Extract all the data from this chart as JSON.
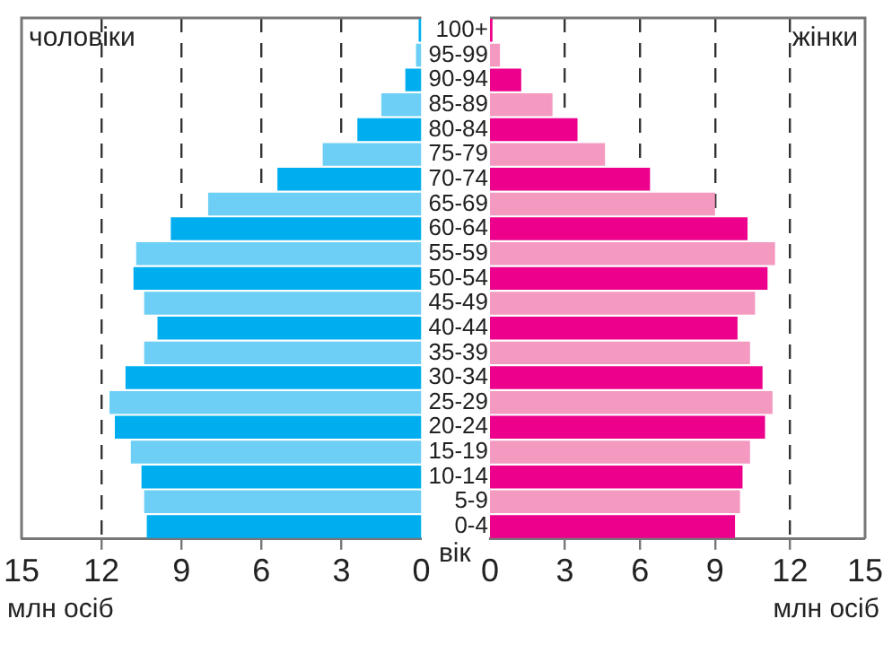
{
  "chart_data": [
    {
      "type": "bar",
      "orientation": "horizontal",
      "categories": [
        "100+",
        "95-99",
        "90-94",
        "85-89",
        "80-84",
        "75-79",
        "70-74",
        "65-69",
        "60-64",
        "55-59",
        "50-54",
        "45-49",
        "40-44",
        "35-39",
        "30-34",
        "25-29",
        "20-24",
        "15-19",
        "10-14",
        "5-9",
        "0-4"
      ],
      "values": [
        0.1,
        0.2,
        0.6,
        1.5,
        2.4,
        3.7,
        5.4,
        8.0,
        9.4,
        10.7,
        10.8,
        10.4,
        9.9,
        10.4,
        11.1,
        11.7,
        11.5,
        10.9,
        10.5,
        10.4,
        10.3
      ],
      "colors": [
        "#00aeef",
        "#6dcff6",
        "#00aeef",
        "#6dcff6",
        "#00aeef",
        "#6dcff6",
        "#00aeef",
        "#6dcff6",
        "#00aeef",
        "#6dcff6",
        "#00aeef",
        "#6dcff6",
        "#00aeef",
        "#6dcff6",
        "#00aeef",
        "#6dcff6",
        "#00aeef",
        "#6dcff6",
        "#00aeef",
        "#6dcff6",
        "#00aeef"
      ],
      "xlim": [
        15,
        0
      ],
      "xticks": [
        15,
        12,
        9,
        6,
        3,
        0
      ],
      "xlabel": "млн осіб",
      "grid": "x",
      "annotations": [
        "чоловіки",
        "вік"
      ]
    },
    {
      "type": "bar",
      "orientation": "horizontal",
      "categories": [
        null,
        null,
        null,
        null,
        null,
        null,
        null,
        null,
        null,
        null,
        null,
        null,
        null,
        null,
        null,
        null,
        null,
        null,
        null,
        null,
        null
      ],
      "values": [
        0.1,
        0.4,
        1.25,
        2.5,
        3.5,
        4.6,
        6.4,
        9.0,
        10.3,
        11.4,
        11.1,
        10.6,
        9.9,
        10.4,
        10.9,
        11.3,
        11.0,
        10.4,
        10.1,
        10.0,
        9.8
      ],
      "colors": [
        "#ec008c",
        "#f49ac1",
        "#ec008c",
        "#f49ac1",
        "#ec008c",
        "#f49ac1",
        "#ec008c",
        "#f49ac1",
        "#ec008c",
        "#f49ac1",
        "#ec008c",
        "#f49ac1",
        "#ec008c",
        "#f49ac1",
        "#ec008c",
        "#f49ac1",
        "#ec008c",
        "#f49ac1",
        "#ec008c",
        "#f49ac1",
        "#ec008c"
      ],
      "xlim": [
        0,
        15
      ],
      "xticks": [
        0,
        3,
        6,
        9,
        12,
        15
      ],
      "xlabel": "млн осіб",
      "grid": "x",
      "tick_labels": "x",
      "annotations": [
        "жінки"
      ]
    }
  ]
}
